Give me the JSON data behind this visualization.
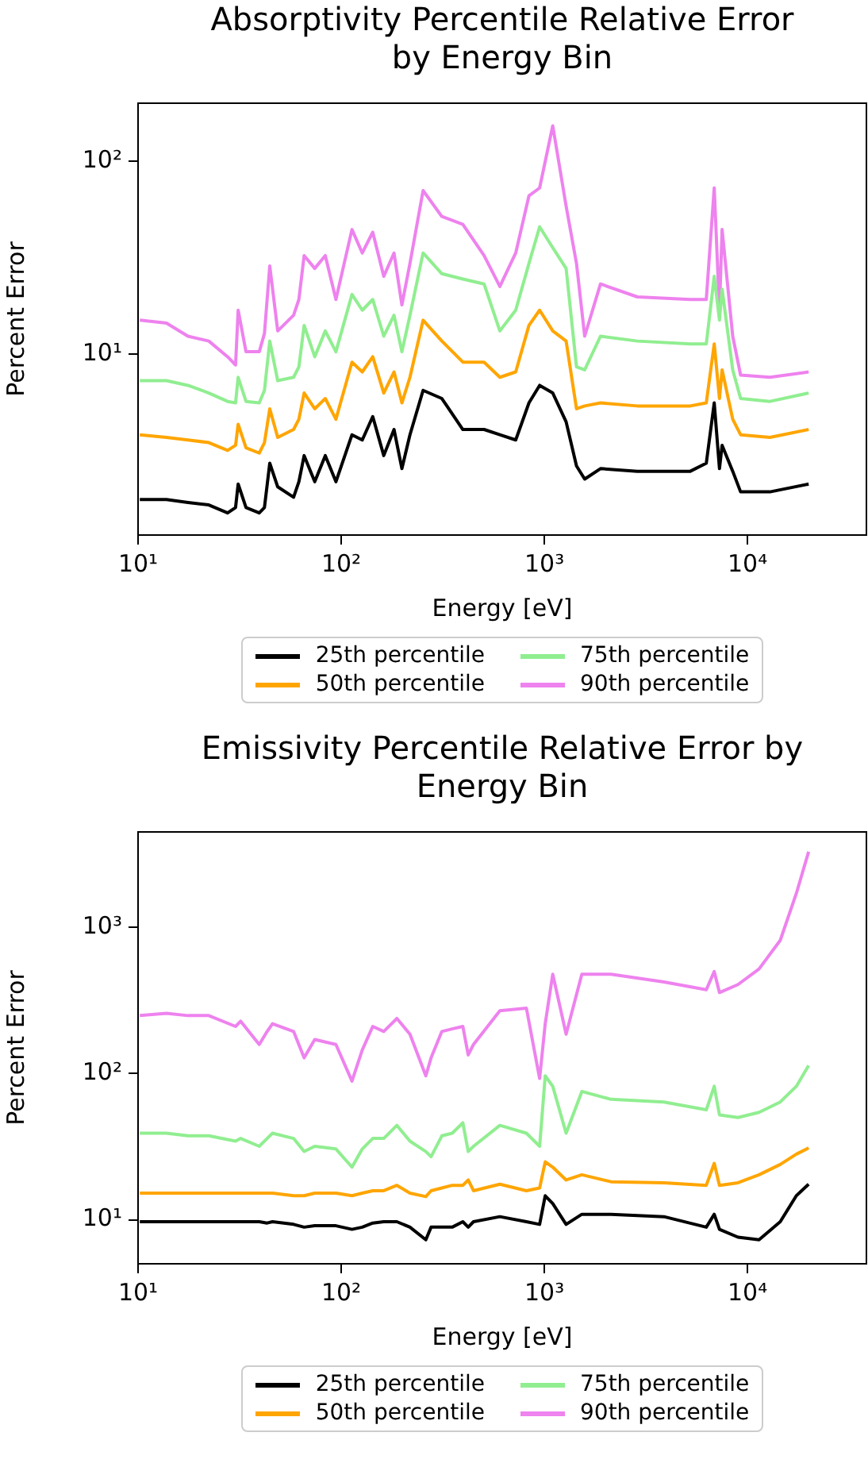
{
  "chart_data": [
    {
      "type": "line",
      "title": "Absorptivity Percentile Relative Error by Energy Bin",
      "xlabel": "Energy [eV]",
      "ylabel": "Percent Error",
      "log": "xy",
      "legend": "bottom",
      "xlim": [
        10,
        38500
      ],
      "ylim": [
        1.16,
        199
      ],
      "xticks": [
        {
          "value": 10,
          "label": "10¹"
        },
        {
          "value": 100,
          "label": "10²"
        },
        {
          "value": 1000,
          "label": "10³"
        },
        {
          "value": 10000,
          "label": "10⁴"
        }
      ],
      "yticks": [
        {
          "value": 10,
          "label": "10¹"
        },
        {
          "value": 100,
          "label": "10²"
        }
      ],
      "x": [
        10.2,
        13.8,
        17.6,
        22.3,
        27.6,
        30.2,
        31.1,
        34,
        39.5,
        41.9,
        44.5,
        48.7,
        58.3,
        61.9,
        65.7,
        74.1,
        83.5,
        94.2,
        113,
        127,
        143,
        162,
        182,
        199,
        218,
        253,
        313,
        397,
        505,
        604,
        723,
        840,
        948,
        1100,
        1280,
        1440,
        1580,
        1890,
        2870,
        5230,
        6270,
        6860,
        7280,
        7500,
        8460,
        9250,
        12900,
        20000
      ],
      "series": [
        {
          "name": "25th percentile",
          "color": "#000000",
          "values": [
            1.77,
            1.77,
            1.71,
            1.66,
            1.51,
            1.61,
            2.13,
            1.61,
            1.51,
            1.61,
            2.73,
            2.06,
            1.82,
            2.19,
            2.99,
            2.19,
            2.99,
            2.19,
            3.83,
            3.6,
            4.76,
            2.99,
            4.08,
            2.56,
            3.83,
            6.5,
            5.9,
            4.08,
            4.08,
            3.83,
            3.6,
            5.6,
            6.9,
            6.3,
            4.47,
            2.64,
            2.26,
            2.56,
            2.48,
            2.48,
            2.73,
            5.6,
            2.56,
            3.38,
            2.48,
            1.94,
            1.94,
            2.13
          ]
        },
        {
          "name": "50th percentile",
          "color": "#ffa500",
          "values": [
            3.83,
            3.71,
            3.6,
            3.49,
            3.18,
            3.38,
            4.34,
            3.28,
            3.08,
            3.49,
            5.22,
            3.71,
            4.08,
            4.61,
            6.3,
            5.22,
            5.9,
            4.61,
            9.1,
            8.1,
            9.7,
            6.3,
            8.1,
            5.6,
            7.6,
            15,
            11.7,
            9.1,
            9.1,
            7.6,
            8.1,
            14.1,
            16.9,
            13.2,
            11.7,
            5.22,
            5.4,
            5.6,
            5.4,
            5.4,
            5.6,
            11.3,
            5.9,
            8.3,
            4.61,
            3.83,
            3.71,
            4.08
          ]
        },
        {
          "name": "75th percentile",
          "color": "#90ee90",
          "values": [
            7.3,
            7.3,
            6.9,
            6.3,
            5.7,
            5.6,
            7.6,
            5.7,
            5.6,
            6.5,
            11.7,
            7.3,
            7.6,
            8.6,
            14.1,
            9.7,
            13.2,
            10.3,
            20.4,
            16.9,
            19.2,
            12.4,
            15.9,
            10.3,
            15.9,
            33.4,
            26.1,
            24.5,
            23.1,
            13.2,
            16.9,
            29.5,
            45.6,
            35.6,
            27.8,
            8.6,
            8.3,
            12.4,
            11.7,
            11.3,
            11.3,
            25.3,
            15,
            21.7,
            8.3,
            5.9,
            5.7,
            6.3
          ]
        },
        {
          "name": "90th percentile",
          "color": "#ee82ee",
          "values": [
            15,
            14.5,
            12.4,
            11.7,
            9.7,
            8.8,
            16.9,
            10.3,
            10.3,
            12.8,
            28.6,
            13.2,
            15.9,
            19.2,
            32.4,
            27.8,
            32.4,
            19.2,
            44.2,
            33.4,
            42.8,
            25.3,
            33.4,
            18,
            29.5,
            70.3,
            51.6,
            47,
            32.4,
            22.4,
            33.4,
            66,
            72.5,
            152,
            58.4,
            29.5,
            12.4,
            23.1,
            19.8,
            19.2,
            19.2,
            72.5,
            16.9,
            44.2,
            12.4,
            7.8,
            7.6,
            8.1
          ]
        }
      ]
    },
    {
      "type": "line",
      "title": "Emissivity Percentile Relative Error by Energy Bin",
      "xlabel": "Energy [eV]",
      "ylabel": "Percent Error",
      "log": "xy",
      "legend": "bottom",
      "xlim": [
        10,
        38500
      ],
      "ylim": [
        5,
        4490
      ],
      "xticks": [
        {
          "value": 10,
          "label": "10¹"
        },
        {
          "value": 100,
          "label": "10²"
        },
        {
          "value": 1000,
          "label": "10³"
        },
        {
          "value": 10000,
          "label": "10⁴"
        }
      ],
      "yticks": [
        {
          "value": 10,
          "label": "10¹"
        },
        {
          "value": 100,
          "label": "10²"
        },
        {
          "value": 1000,
          "label": "10³"
        }
      ],
      "x": [
        10.2,
        13.8,
        17.6,
        22.3,
        30.2,
        32,
        39.5,
        43.2,
        45.9,
        58.3,
        65.7,
        74.1,
        94.2,
        113,
        127,
        143,
        162,
        188,
        218,
        261,
        277,
        313,
        352,
        397,
        422,
        448,
        604,
        816,
        948,
        1010,
        1100,
        1280,
        1530,
        2130,
        3880,
        6270,
        6860,
        7280,
        8980,
        11400,
        14500,
        17400,
        20000
      ],
      "series": [
        {
          "name": "25th percentile",
          "color": "#000000",
          "values": [
            9.7,
            9.7,
            9.7,
            9.7,
            9.7,
            9.7,
            9.7,
            9.5,
            9.7,
            9.3,
            8.9,
            9.1,
            9.1,
            8.6,
            8.9,
            9.5,
            9.7,
            9.7,
            8.9,
            7.3,
            8.9,
            8.9,
            8.9,
            9.7,
            8.9,
            9.7,
            10.5,
            9.7,
            9.3,
            14.6,
            12.9,
            9.3,
            10.9,
            10.9,
            10.5,
            8.9,
            10.9,
            8.6,
            7.6,
            7.3,
            9.7,
            14.6,
            17.5
          ]
        },
        {
          "name": "50th percentile",
          "color": "#ffa500",
          "values": [
            15.2,
            15.2,
            15.2,
            15.2,
            15.2,
            15.2,
            15.2,
            15.2,
            15.2,
            14.6,
            14.6,
            15.2,
            15.2,
            14.6,
            15.2,
            15.8,
            15.8,
            17.2,
            15.2,
            14.4,
            15.8,
            16.5,
            17.2,
            17.2,
            18.7,
            15.8,
            17.5,
            15.8,
            16.5,
            24.9,
            22.9,
            18.7,
            20.3,
            18.2,
            17.9,
            17.2,
            24.3,
            17.2,
            17.9,
            20.3,
            23.9,
            28.1,
            31
          ]
        },
        {
          "name": "75th percentile",
          "color": "#90ee90",
          "values": [
            39.1,
            39.1,
            37.5,
            37.5,
            34.5,
            36,
            31.8,
            36,
            39.1,
            36,
            29.3,
            31.8,
            30.5,
            22.9,
            30.5,
            36,
            36,
            44.2,
            34.5,
            29.3,
            27,
            37.5,
            39.1,
            46,
            29.3,
            31.8,
            44.2,
            39.1,
            31.8,
            96.4,
            81.8,
            39.1,
            75.4,
            66.6,
            63.9,
            56.5,
            81.8,
            52.1,
            50,
            54.3,
            63.9,
            81.8,
            113.6
          ]
        },
        {
          "name": "90th percentile",
          "color": "#ee82ee",
          "values": [
            249,
            258,
            249,
            249,
            210,
            228,
            158,
            194,
            219,
            194,
            128,
            171,
            158,
            88.8,
            145,
            210,
            194,
            238,
            186,
            96.4,
            128,
            194,
            202,
            210,
            134,
            158,
            269,
            280,
            92.5,
            219,
            478,
            186,
            478,
            478,
            423,
            374,
            498,
            358,
            406,
            519,
            815,
            1705,
            3290
          ]
        }
      ]
    }
  ]
}
